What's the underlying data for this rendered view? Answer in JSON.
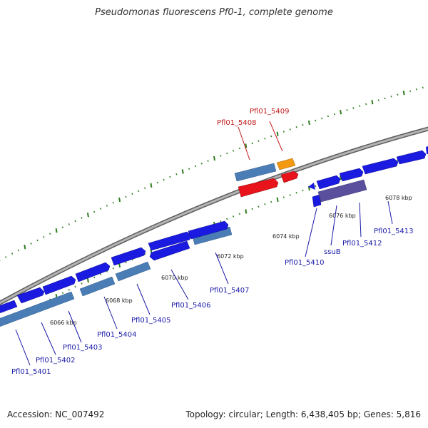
{
  "title": "Pseudomonas fluorescens Pf0-1, complete genome",
  "footer": {
    "accession": "Accession: NC_007492",
    "summary": "Topology: circular; Length: 6,438,405 bp; Genes: 5,816"
  },
  "colors": {
    "backbone": "#8a8a8a",
    "tick": "#2e7d1e",
    "gene_forward": "#1a1ae0",
    "gene_reverse": "#1414d8",
    "cds_reverse": "#4a7db5",
    "cds_highlight": "#e8131b",
    "cds_orange": "#f39a12",
    "cds_purple": "#5a4f9c",
    "label_blue": "#1a1aa8",
    "label_red": "#c21a1a"
  },
  "ticks": [
    {
      "label": "6066 kbp"
    },
    {
      "label": "6068 kbp"
    },
    {
      "label": "6070 kbp"
    },
    {
      "label": "6072 kbp"
    },
    {
      "label": "6074 kbp"
    },
    {
      "label": "6076 kbp"
    },
    {
      "label": "6078 kbp"
    }
  ],
  "genes": [
    {
      "name": "Pfl01_5401",
      "color": "blue"
    },
    {
      "name": "Pfl01_5402",
      "color": "blue"
    },
    {
      "name": "Pfl01_5403",
      "color": "blue"
    },
    {
      "name": "Pfl01_5404",
      "color": "blue"
    },
    {
      "name": "Pfl01_5405",
      "color": "blue"
    },
    {
      "name": "Pfl01_5406",
      "color": "blue"
    },
    {
      "name": "Pfl01_5407",
      "color": "blue"
    },
    {
      "name": "Pfl01_5408",
      "color": "red"
    },
    {
      "name": "Pfl01_5409",
      "color": "red"
    },
    {
      "name": "Pfl01_5410",
      "color": "blue"
    },
    {
      "name": "ssuB",
      "color": "blue"
    },
    {
      "name": "Pfl01_5412",
      "color": "blue"
    },
    {
      "name": "Pfl01_5413",
      "color": "blue"
    }
  ]
}
